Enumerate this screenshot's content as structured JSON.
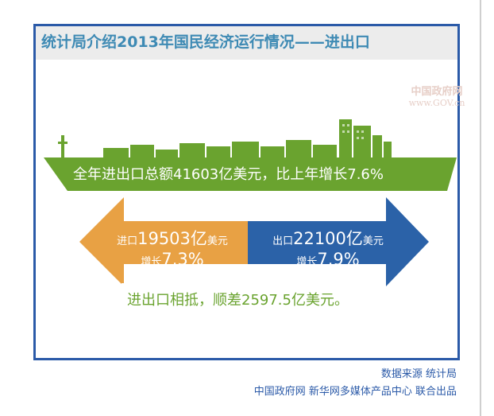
{
  "title": "统计局介绍2013年国民经济运行情况——进出口",
  "watermark": {
    "line1": "中国政府网",
    "line2": "www.GOV.cn"
  },
  "total": {
    "text": "全年进出口总额41603亿美元，比上年增长7.6%"
  },
  "imports": {
    "label": "进口",
    "value": "19503亿",
    "unit": "美元",
    "growth_label": "增长",
    "growth": "7.3%"
  },
  "exports": {
    "label": "出口",
    "value": "22100亿",
    "unit": "美元",
    "growth_label": "增长",
    "growth": "7.9%"
  },
  "surplus": {
    "text": "进出口相抵，顺差2597.5亿美元。"
  },
  "footer": {
    "source": "数据来源 统计局",
    "credit": "中国政府网 新华网多媒体产品中心 联合出品"
  },
  "colors": {
    "frame": "#2b5aa8",
    "title": "#3e8ab4",
    "ship": "#6aa32f",
    "imports": "#e8a144",
    "exports": "#2b62a8",
    "surplus_text": "#6aa32f"
  }
}
